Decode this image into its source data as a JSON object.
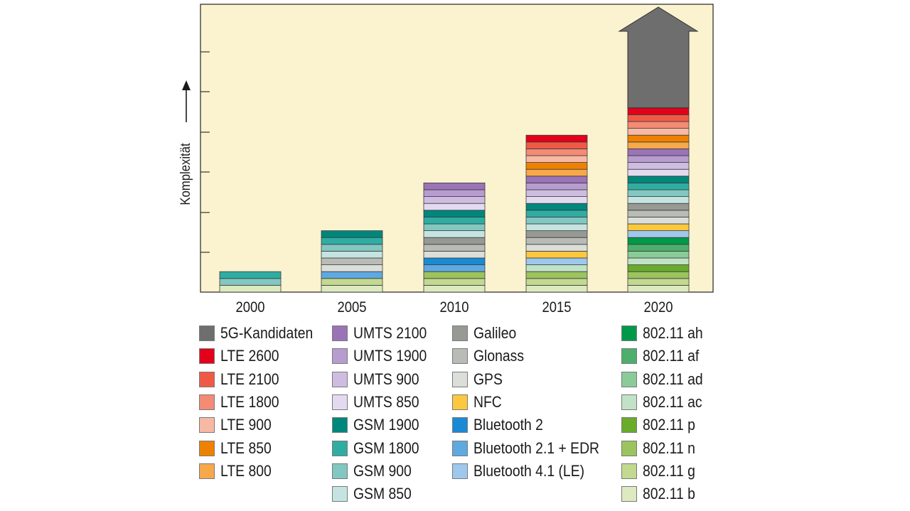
{
  "chart_data": {
    "type": "bar",
    "stacked": true,
    "ylabel": "Komplexität",
    "ylabel_arrow": "up",
    "yticks_labeled": false,
    "grid": false,
    "legend_placement": "bottom",
    "plot_background": "#fbf3cf",
    "categories": [
      "2000",
      "2005",
      "2010",
      "2015",
      "2020"
    ],
    "legend": [
      {
        "key": "5g",
        "label": "5G-Kandidaten",
        "color": "#6e6e6e"
      },
      {
        "key": "lte2600",
        "label": "LTE 2600",
        "color": "#e3001b"
      },
      {
        "key": "lte2100",
        "label": "LTE 2100",
        "color": "#ef5a46"
      },
      {
        "key": "lte1800",
        "label": "LTE 1800",
        "color": "#f38b75"
      },
      {
        "key": "lte900",
        "label": "LTE 900",
        "color": "#f7b9a4"
      },
      {
        "key": "lte850",
        "label": "LTE 850",
        "color": "#ee8100"
      },
      {
        "key": "lte800",
        "label": "LTE 800",
        "color": "#f6a84a"
      },
      {
        "key": "umts2100",
        "label": "UMTS 2100",
        "color": "#9b73b7"
      },
      {
        "key": "umts1900",
        "label": "UMTS 1900",
        "color": "#b79cd0"
      },
      {
        "key": "umts900",
        "label": "UMTS 900",
        "color": "#cebde1"
      },
      {
        "key": "umts850",
        "label": "UMTS 850",
        "color": "#e4daf0"
      },
      {
        "key": "gsm1900",
        "label": "GSM 1900",
        "color": "#00877c"
      },
      {
        "key": "gsm1800",
        "label": "GSM 1800",
        "color": "#2fada3"
      },
      {
        "key": "gsm900",
        "label": "GSM 900",
        "color": "#82c7c1"
      },
      {
        "key": "gsm850",
        "label": "GSM 850",
        "color": "#c5e4e1"
      },
      {
        "key": "galileo",
        "label": "Galileo",
        "color": "#969a93"
      },
      {
        "key": "glonass",
        "label": "Glonass",
        "color": "#b9bcb6"
      },
      {
        "key": "gps",
        "label": "GPS",
        "color": "#dcded9"
      },
      {
        "key": "nfc",
        "label": "NFC",
        "color": "#fbc840"
      },
      {
        "key": "bt2",
        "label": "Bluetooth 2",
        "color": "#1a8ad4"
      },
      {
        "key": "bt21",
        "label": "Bluetooth 2.1 + EDR",
        "color": "#5fa9e1"
      },
      {
        "key": "bt41",
        "label": "Bluetooth 4.1 (LE)",
        "color": "#9ec8ec"
      },
      {
        "key": "w_ah",
        "label": "802.11 ah",
        "color": "#00994a"
      },
      {
        "key": "w_af",
        "label": "802.11 af",
        "color": "#4daf6d"
      },
      {
        "key": "w_ad",
        "label": "802.11 ad",
        "color": "#8acb98"
      },
      {
        "key": "w_ac",
        "label": "802.11 ac",
        "color": "#c1e2c6"
      },
      {
        "key": "w_p",
        "label": "802.11 p",
        "color": "#69ab2b"
      },
      {
        "key": "w_n",
        "label": "802.11 n",
        "color": "#9bc45f"
      },
      {
        "key": "w_g",
        "label": "802.11 g",
        "color": "#c2d98f"
      },
      {
        "key": "w_b",
        "label": "802.11 b",
        "color": "#dde9bf"
      }
    ],
    "stacks": [
      {
        "category": "2000",
        "segments": [
          "w_b",
          "gsm900",
          "gsm1800"
        ]
      },
      {
        "category": "2005",
        "segments": [
          "w_b",
          "w_g",
          "bt21",
          "gps",
          "glonass",
          "gsm850",
          "gsm900",
          "gsm1800",
          "gsm1900"
        ]
      },
      {
        "category": "2010",
        "segments": [
          "w_b",
          "w_g",
          "w_n",
          "bt21",
          "bt2",
          "gps",
          "glonass",
          "galileo",
          "gsm850",
          "gsm900",
          "gsm1800",
          "gsm1900",
          "umts850",
          "umts900",
          "umts1900",
          "umts2100"
        ]
      },
      {
        "category": "2015",
        "segments": [
          "w_b",
          "w_g",
          "w_n",
          "w_ac",
          "bt41",
          "nfc",
          "gps",
          "glonass",
          "galileo",
          "gsm850",
          "gsm900",
          "gsm1800",
          "gsm1900",
          "umts850",
          "umts900",
          "umts1900",
          "umts2100",
          "lte800",
          "lte850",
          "lte900",
          "lte1800",
          "lte2100",
          "lte2600"
        ]
      },
      {
        "category": "2020",
        "segments": [
          "w_b",
          "w_g",
          "w_n",
          "w_p",
          "w_ac",
          "w_ad",
          "w_af",
          "w_ah",
          "bt41",
          "nfc",
          "gps",
          "glonass",
          "galileo",
          "gsm850",
          "gsm900",
          "gsm1800",
          "gsm1900",
          "umts850",
          "umts900",
          "umts1900",
          "umts2100",
          "lte800",
          "lte850",
          "lte900",
          "lte1800",
          "lte2100",
          "lte2600",
          "5g"
        ]
      }
    ]
  }
}
